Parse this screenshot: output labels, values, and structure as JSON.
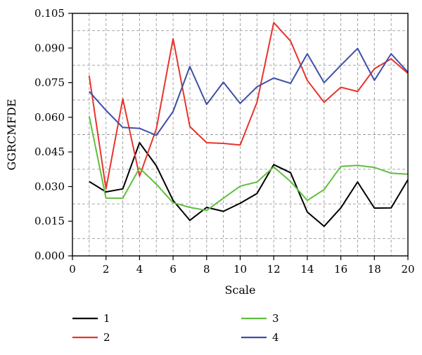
{
  "chart_data": {
    "type": "line",
    "xlabel": "Scale",
    "ylabel": "GGRCMFDE",
    "xlim": [
      0,
      20
    ],
    "ylim": [
      0,
      0.105
    ],
    "xticks": [
      0,
      2,
      4,
      6,
      8,
      10,
      12,
      14,
      16,
      18,
      20
    ],
    "yticks": [
      0.0,
      0.015,
      0.03,
      0.045,
      0.06,
      0.075,
      0.09,
      0.105
    ],
    "ytick_labels": [
      "0.000",
      "0.015",
      "0.030",
      "0.045",
      "0.060",
      "0.075",
      "0.090",
      "0.105"
    ],
    "grid": true,
    "legend_position": "bottom",
    "x": [
      1,
      2,
      3,
      4,
      5,
      6,
      7,
      8,
      9,
      10,
      11,
      12,
      13,
      14,
      15,
      16,
      17,
      18,
      19,
      20
    ],
    "series": [
      {
        "name": "1",
        "color": "#000000",
        "values": [
          0.0322,
          0.0277,
          0.029,
          0.049,
          0.039,
          0.024,
          0.0154,
          0.021,
          0.0193,
          0.0228,
          0.027,
          0.0395,
          0.036,
          0.019,
          0.0128,
          0.0208,
          0.032,
          0.0207,
          0.0208,
          0.033
        ]
      },
      {
        "name": "2",
        "color": "#e8342b",
        "values": [
          0.078,
          0.029,
          0.068,
          0.0345,
          0.055,
          0.094,
          0.056,
          0.049,
          0.0487,
          0.048,
          0.0665,
          0.101,
          0.093,
          0.076,
          0.0665,
          0.073,
          0.0712,
          0.081,
          0.0853,
          0.079
        ]
      },
      {
        "name": "3",
        "color": "#5fbf3f",
        "values": [
          0.0605,
          0.025,
          0.025,
          0.038,
          0.031,
          0.023,
          0.021,
          0.0197,
          0.025,
          0.0302,
          0.032,
          0.0385,
          0.0322,
          0.024,
          0.0287,
          0.0387,
          0.0392,
          0.0383,
          0.0358,
          0.0354
        ]
      },
      {
        "name": "4",
        "color": "#3f4fa8",
        "values": [
          0.0712,
          0.063,
          0.0556,
          0.0552,
          0.0522,
          0.0625,
          0.082,
          0.0656,
          0.0752,
          0.066,
          0.0732,
          0.077,
          0.0747,
          0.0875,
          0.075,
          0.0825,
          0.0898,
          0.076,
          0.0875,
          0.0795
        ]
      }
    ]
  }
}
